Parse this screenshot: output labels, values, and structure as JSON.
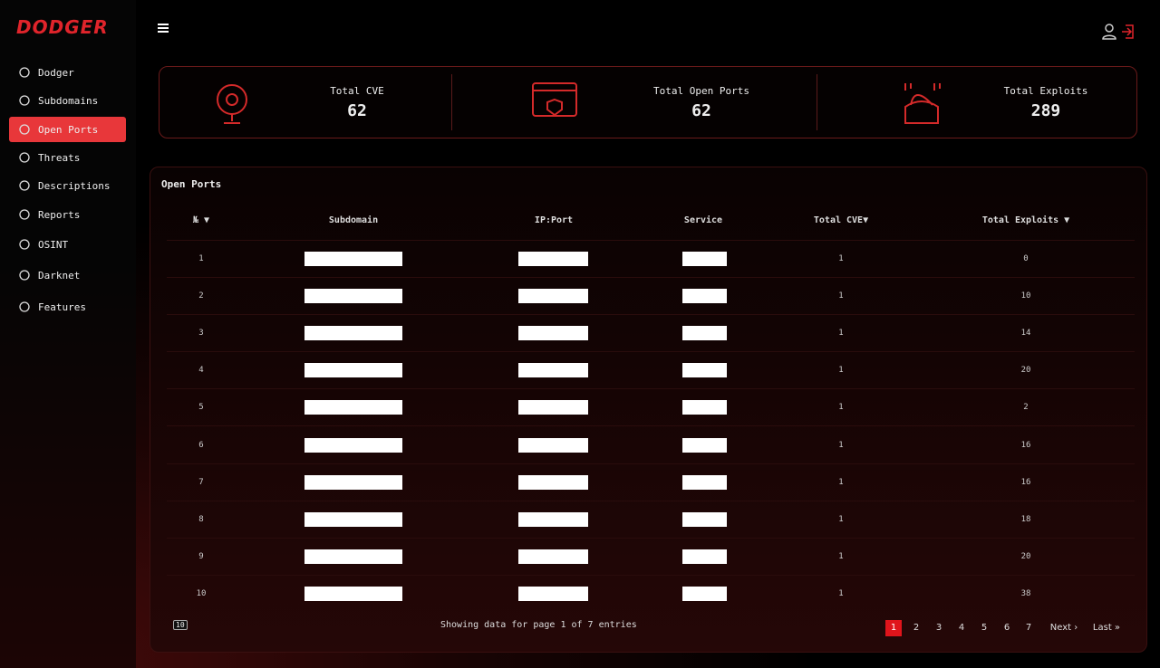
{
  "brand": "DODGER",
  "nav": [
    {
      "label": "Dodger",
      "active": false
    },
    {
      "label": "Subdomains",
      "active": false
    },
    {
      "label": "Open Ports",
      "active": true
    },
    {
      "label": "Threats",
      "active": false
    },
    {
      "label": "Descriptions",
      "active": false
    },
    {
      "label": "Reports",
      "active": false
    },
    {
      "label": "OSINT",
      "active": false
    },
    {
      "label": "Darknet",
      "active": false
    },
    {
      "label": "Features",
      "active": false
    }
  ],
  "stats": [
    {
      "label": "Total CVE",
      "value": 62
    },
    {
      "label": "Total Open Ports",
      "value": 62
    },
    {
      "label": "Total Exploits",
      "value": 289
    }
  ],
  "table": {
    "title": "Open Ports",
    "columns": [
      "№ ▼",
      "Subdomain",
      "IP:Port",
      "Service",
      "Total CVE▼",
      "Total Exploits ▼"
    ],
    "rows": [
      [
        1,
        1,
        0
      ],
      [
        2,
        1,
        10
      ],
      [
        3,
        1,
        14
      ],
      [
        4,
        1,
        20
      ],
      [
        5,
        1,
        2
      ],
      [
        6,
        1,
        16
      ],
      [
        7,
        1,
        16
      ],
      [
        8,
        1,
        18
      ],
      [
        9,
        1,
        20
      ],
      [
        10,
        1,
        38
      ]
    ],
    "page_size": "10",
    "status": "Showing data for page 1 of 7 entries",
    "pages": [
      "1",
      "2",
      "3",
      "4",
      "5",
      "6",
      "7",
      "Next ›",
      "Last »"
    ]
  }
}
